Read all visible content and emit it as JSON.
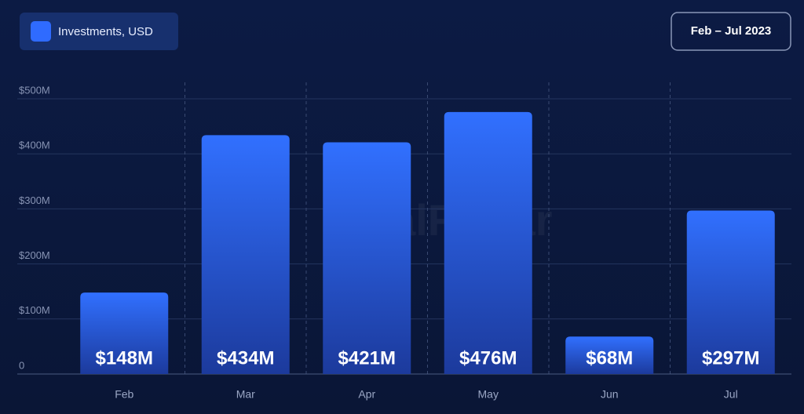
{
  "chart_data": {
    "type": "bar",
    "date_range": "Feb – Jul 2023",
    "watermark": "DealRadar",
    "categories": [
      "Feb",
      "Mar",
      "Apr",
      "May",
      "Jun",
      "Jul"
    ],
    "series": [
      {
        "name": "Investments, USD",
        "color": "#2f6bff",
        "values": [
          148,
          434,
          421,
          476,
          68,
          297
        ],
        "value_labels": [
          "$148M",
          "$434M",
          "$421M",
          "$476M",
          "$68M",
          "$297M"
        ]
      }
    ],
    "ylim": [
      0,
      500
    ],
    "yticks": [
      0,
      {
        "value": 100,
        "label": "$100M"
      },
      {
        "value": 200,
        "label": "$200M"
      },
      {
        "value": 300,
        "label": "$300M"
      },
      {
        "value": 400,
        "label": "$400M"
      },
      {
        "value": 500,
        "label": "$500M"
      }
    ],
    "grid": true
  }
}
